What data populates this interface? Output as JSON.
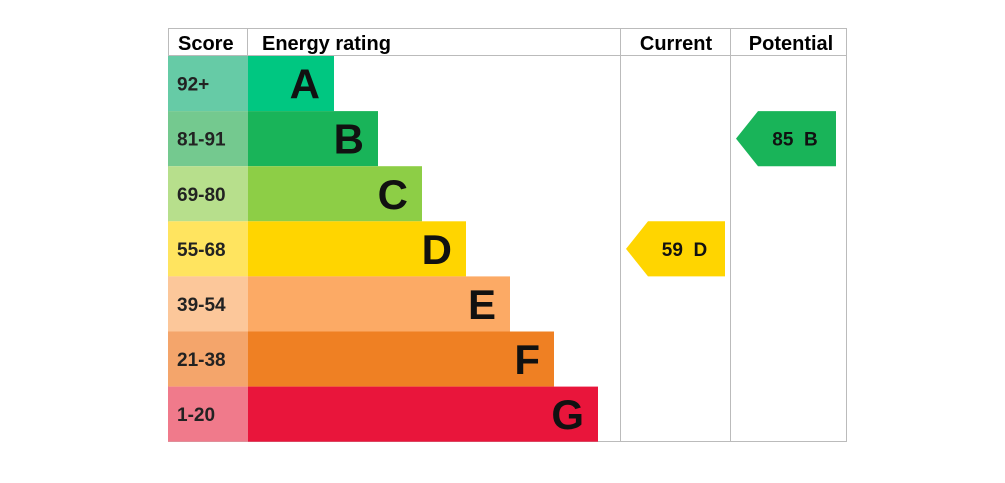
{
  "headers": {
    "score": "Score",
    "energy_rating": "Energy rating",
    "current": "Current",
    "potential": "Potential"
  },
  "bands": [
    {
      "score": "92+",
      "letter": "A",
      "color": "#00c781",
      "score_bg": "#66cba6"
    },
    {
      "score": "81-91",
      "letter": "B",
      "color": "#19b459",
      "score_bg": "#74c98f"
    },
    {
      "score": "69-80",
      "letter": "C",
      "color": "#8dce46",
      "score_bg": "#b7df8c"
    },
    {
      "score": "55-68",
      "letter": "D",
      "color": "#ffd500",
      "score_bg": "#ffe45f"
    },
    {
      "score": "39-54",
      "letter": "E",
      "color": "#fcaa65",
      "score_bg": "#fcc79a"
    },
    {
      "score": "21-38",
      "letter": "F",
      "color": "#ef8023",
      "score_bg": "#f4a56b"
    },
    {
      "score": "1-20",
      "letter": "G",
      "color": "#e9153b",
      "score_bg": "#f07a8b"
    }
  ],
  "current": {
    "value": "59",
    "letter": "D",
    "color": "#ffd500"
  },
  "potential": {
    "value": "85",
    "letter": "B",
    "color": "#19b459"
  }
}
